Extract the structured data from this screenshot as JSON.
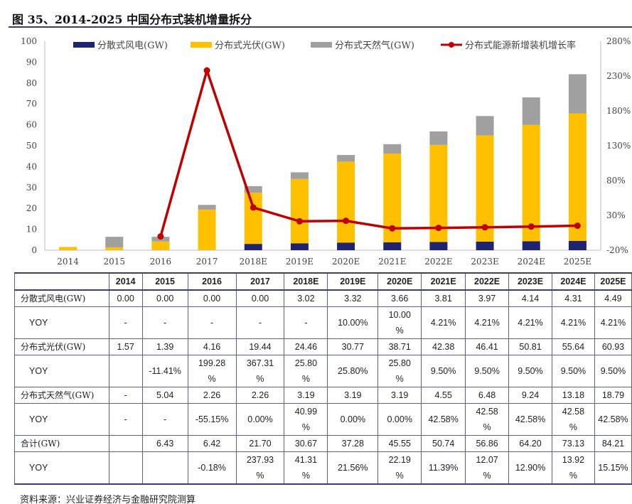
{
  "title": "图 35、2014-2025 中国分布式装机增量拆分",
  "source": "资料来源：兴业证券经济与金融研究院测算",
  "chart_data": {
    "type": "bar",
    "stacked": true,
    "categories": [
      "2014",
      "2015",
      "2016",
      "2017",
      "2018E",
      "2019E",
      "2020E",
      "2021E",
      "2022E",
      "2023E",
      "2024E",
      "2025E"
    ],
    "series": [
      {
        "name": "分散式风电(GW)",
        "color": "#1f2370",
        "axis": "left",
        "values": [
          0,
          0,
          0,
          0,
          3.02,
          3.32,
          3.66,
          3.81,
          3.97,
          4.14,
          4.31,
          4.49
        ]
      },
      {
        "name": "分布式光伏(GW)",
        "color": "#ffc000",
        "axis": "left",
        "values": [
          1.57,
          1.39,
          4.16,
          19.44,
          24.46,
          30.77,
          38.71,
          42.38,
          46.41,
          50.81,
          55.64,
          60.93
        ]
      },
      {
        "name": "分布式天然气(GW)",
        "color": "#a0a0a0",
        "axis": "left",
        "values": [
          0,
          5.04,
          2.26,
          2.26,
          3.19,
          3.19,
          3.19,
          4.55,
          6.48,
          9.24,
          13.18,
          18.79
        ]
      },
      {
        "name": "分布式能源新增装机增长率",
        "color": "#c00000",
        "type": "line",
        "axis": "right",
        "values": [
          null,
          null,
          -0.18,
          237.93,
          41.31,
          21.56,
          22.19,
          11.39,
          12.07,
          12.9,
          13.92,
          15.15
        ]
      }
    ],
    "ylim": [
      0,
      100
    ],
    "yticks": [
      "0",
      "10",
      "20",
      "30",
      "40",
      "50",
      "60",
      "70",
      "80",
      "90",
      "100"
    ],
    "y2lim": [
      -20,
      280
    ],
    "y2ticks": [
      "-20%",
      "30%",
      "80%",
      "130%",
      "180%",
      "230%",
      "280%"
    ],
    "legend": "top",
    "grid": false
  },
  "table": {
    "header": [
      "",
      "2014",
      "2015",
      "2016",
      "2017",
      "2018E",
      "2019E",
      "2020E",
      "2021E",
      "2022E",
      "2023E",
      "2024E",
      "2025E"
    ],
    "rows": [
      {
        "label": "分散式风电(GW)",
        "kind": "lab",
        "cells": [
          "0.00",
          "0.00",
          "0.00",
          "0.00",
          "3.02",
          "3.32",
          "3.66",
          "3.81",
          "3.97",
          "4.14",
          "4.31",
          "4.49"
        ]
      },
      {
        "label": "YOY",
        "kind": "yoy",
        "cells": [
          "-",
          "-",
          "-",
          "-",
          "-",
          "10.00%",
          "10.00 %",
          "4.21%",
          "4.21%",
          "4.21%",
          "4.21%",
          "4.21%"
        ]
      },
      {
        "label": "分布式光伏(GW)",
        "kind": "lab",
        "cells": [
          "1.57",
          "1.39",
          "4.16",
          "19.44",
          "24.46",
          "30.77",
          "38.71",
          "42.38",
          "46.41",
          "50.81",
          "55.64",
          "60.93"
        ]
      },
      {
        "label": "YOY",
        "kind": "yoy",
        "cells": [
          "",
          "-11.41%",
          "199.28 %",
          "367.31 %",
          "25.80 %",
          "25.80%",
          "25.80 %",
          "9.50%",
          "9.50%",
          "9.50%",
          "9.50%",
          "9.50%"
        ]
      },
      {
        "label": "分布式天然气(GW)",
        "kind": "lab",
        "cells": [
          "-",
          "5.04",
          "2.26",
          "2.26",
          "3.19",
          "3.19",
          "3.19",
          "4.55",
          "6.48",
          "9.24",
          "13.18",
          "18.79"
        ]
      },
      {
        "label": "YOY",
        "kind": "yoy",
        "cells": [
          "-",
          "-",
          "-55.15%",
          "0.00%",
          "40.99 %",
          "0.00%",
          "0.00%",
          "42.58%",
          "42.58 %",
          "42.58%",
          "42.58 %",
          "42.58%"
        ]
      },
      {
        "label": "合计(GW)",
        "kind": "lab",
        "cells": [
          "",
          "6.43",
          "6.42",
          "21.70",
          "30.67",
          "37.28",
          "45.55",
          "50.74",
          "56.86",
          "64.20",
          "73.13",
          "84.21"
        ]
      },
      {
        "label": "YOY",
        "kind": "yoy",
        "cells": [
          "",
          "",
          "-0.18%",
          "237.93 %",
          "41.31 %",
          "21.56%",
          "22.19 %",
          "11.39%",
          "12.07 %",
          "12.90%",
          "13.92 %",
          "15.15%"
        ]
      }
    ]
  }
}
